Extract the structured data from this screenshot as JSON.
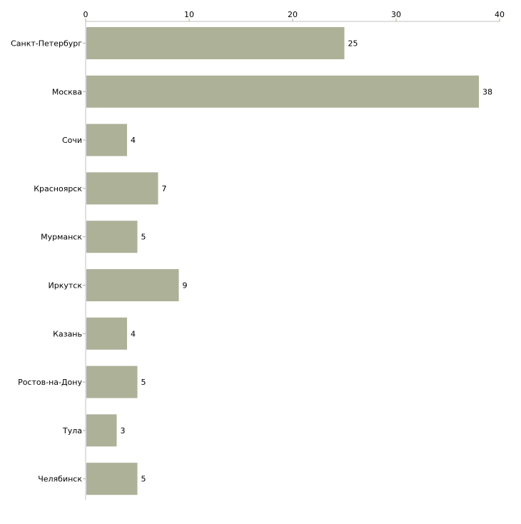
{
  "chart_data": {
    "type": "bar",
    "orientation": "horizontal",
    "title": "",
    "xlabel": "",
    "ylabel": "",
    "categories": [
      "Санкт-Петербург",
      "Москва",
      "Сочи",
      "Красноярск",
      "Мурманск",
      "Иркутск",
      "Казань",
      "Ростов-на-Дону",
      "Тула",
      "Челябинск"
    ],
    "values": [
      25,
      38,
      4,
      7,
      5,
      9,
      4,
      5,
      3,
      5
    ],
    "xlim": [
      0,
      40
    ],
    "xticks": [
      0,
      10,
      20,
      30,
      40
    ],
    "axis_position": "top",
    "grid": false,
    "bar_color": "#acb197",
    "tick_color": "#b5b08a",
    "axis_color": "#c0c0c0"
  }
}
